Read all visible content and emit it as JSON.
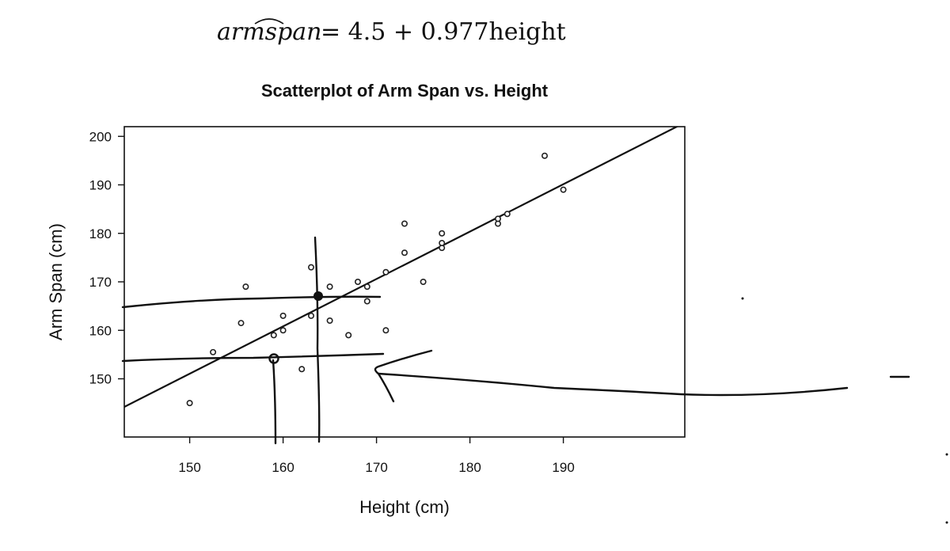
{
  "equation": {
    "lhs": "armspan",
    "rhs": "= 4.5 + 0.977height"
  },
  "chart_data": {
    "type": "scatter",
    "title": "Scatterplot of Arm Span vs. Height",
    "xlabel": "Height (cm)",
    "ylabel": "Arm Span (cm)",
    "xlim": [
      143,
      203
    ],
    "ylim": [
      138,
      202
    ],
    "x_ticks": [
      150,
      160,
      170,
      180,
      190
    ],
    "y_ticks": [
      150,
      160,
      170,
      180,
      190,
      200
    ],
    "grid": false,
    "regression": {
      "intercept": 4.5,
      "slope": 0.977
    },
    "points": [
      {
        "x": 150,
        "y": 145
      },
      {
        "x": 152.5,
        "y": 155.5
      },
      {
        "x": 155.5,
        "y": 161.5
      },
      {
        "x": 156,
        "y": 169
      },
      {
        "x": 159,
        "y": 159
      },
      {
        "x": 160,
        "y": 160
      },
      {
        "x": 160,
        "y": 163
      },
      {
        "x": 162,
        "y": 152
      },
      {
        "x": 163,
        "y": 163
      },
      {
        "x": 163,
        "y": 173
      },
      {
        "x": 165,
        "y": 162
      },
      {
        "x": 165,
        "y": 169
      },
      {
        "x": 167,
        "y": 159
      },
      {
        "x": 168,
        "y": 170
      },
      {
        "x": 169,
        "y": 166
      },
      {
        "x": 169,
        "y": 169
      },
      {
        "x": 171,
        "y": 160
      },
      {
        "x": 171,
        "y": 172
      },
      {
        "x": 173,
        "y": 176
      },
      {
        "x": 173,
        "y": 182
      },
      {
        "x": 175,
        "y": 170
      },
      {
        "x": 177,
        "y": 177
      },
      {
        "x": 177,
        "y": 178
      },
      {
        "x": 177,
        "y": 180
      },
      {
        "x": 183,
        "y": 182
      },
      {
        "x": 183,
        "y": 183
      },
      {
        "x": 184,
        "y": 184
      },
      {
        "x": 188,
        "y": 196
      },
      {
        "x": 190,
        "y": 189
      }
    ]
  }
}
